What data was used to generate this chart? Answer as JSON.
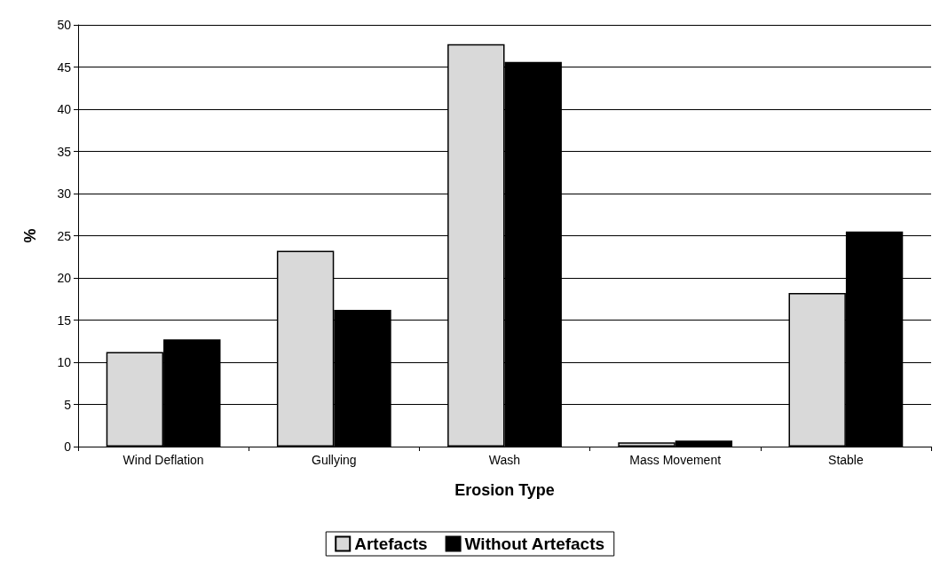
{
  "chart_data": {
    "type": "bar",
    "xlabel": "Erosion Type",
    "ylabel": "%",
    "categories": [
      "Wind Deflation",
      "Gullying",
      "Wash",
      "Mass Movement",
      "Stable"
    ],
    "series": [
      {
        "name": "Artefacts",
        "color": "#d9d9d9",
        "values": [
          11.2,
          23.2,
          47.7,
          0.5,
          18.2
        ]
      },
      {
        "name": "Without Artefacts",
        "color": "#000000",
        "values": [
          12.7,
          16.2,
          45.6,
          0.7,
          25.5
        ]
      }
    ],
    "ylim": [
      0,
      50
    ],
    "yticks": [
      0,
      5,
      10,
      15,
      20,
      25,
      30,
      35,
      40,
      45,
      50
    ],
    "grid": "y",
    "legend": "bottom"
  }
}
